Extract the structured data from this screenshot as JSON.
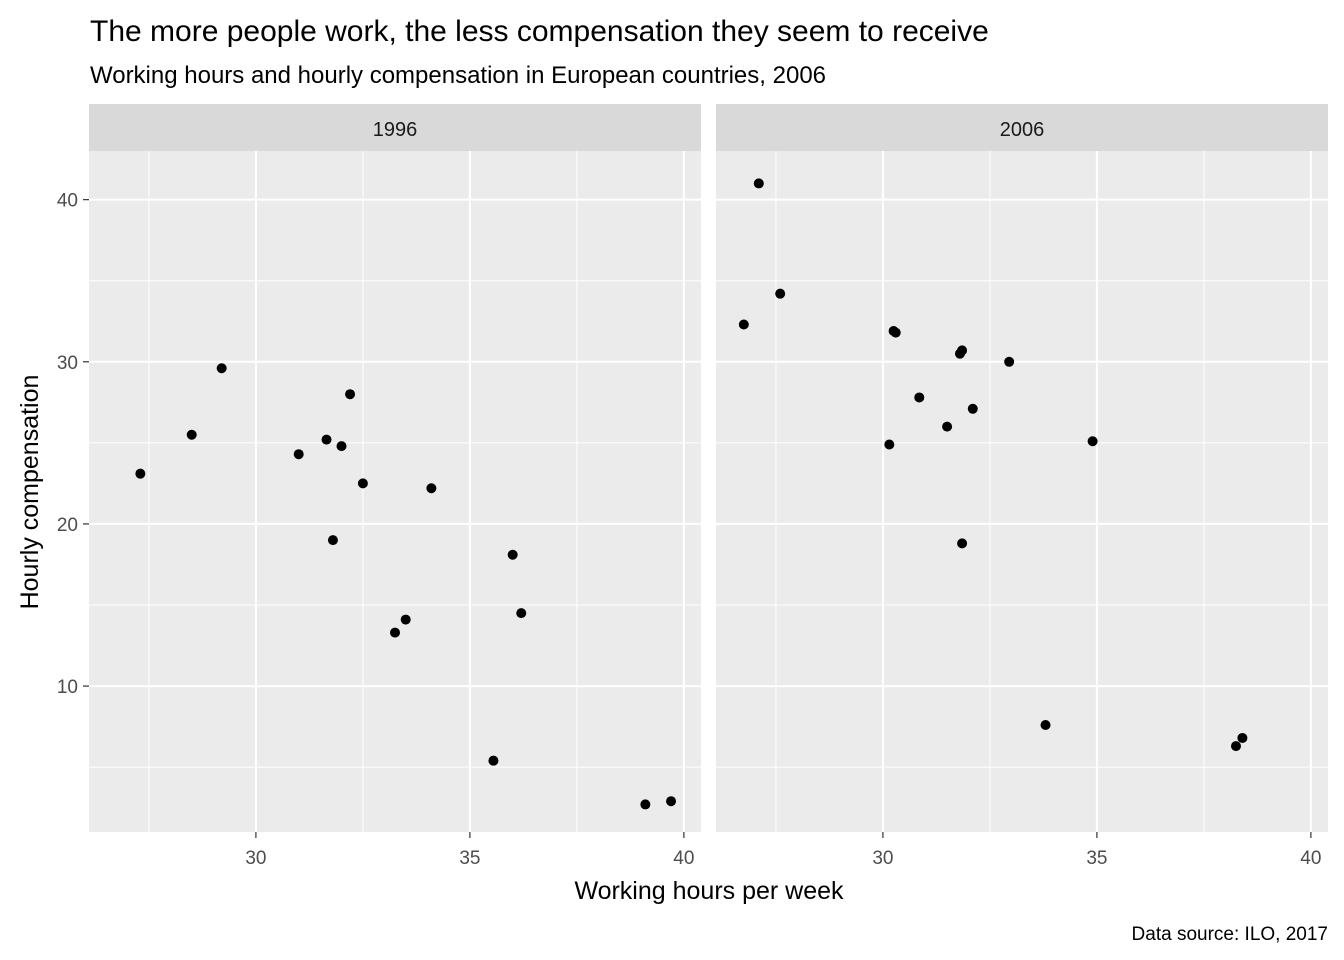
{
  "chart_data": {
    "type": "scatter",
    "title": "The more people work, the less compensation they seem to receive",
    "subtitle": "Working hours and hourly compensation in European countries, 2006",
    "xlabel": "Working hours per week",
    "ylabel": "Hourly compensation",
    "caption": "Data source: ILO, 2017",
    "xlim": [
      26.1,
      40.4
    ],
    "ylim": [
      1.0,
      43.0
    ],
    "x_ticks": [
      30,
      35,
      40
    ],
    "y_ticks": [
      10,
      20,
      30,
      40
    ],
    "grid": true,
    "point_color": "#000000",
    "panel_background": "#ebebeb",
    "strip_background": "#d9d9d9",
    "facets": [
      {
        "label": "1996",
        "points": [
          {
            "x": 27.3,
            "y": 23.1
          },
          {
            "x": 28.5,
            "y": 25.5
          },
          {
            "x": 29.2,
            "y": 29.6
          },
          {
            "x": 31.0,
            "y": 24.3
          },
          {
            "x": 31.65,
            "y": 25.2
          },
          {
            "x": 31.8,
            "y": 19.0
          },
          {
            "x": 32.0,
            "y": 24.8
          },
          {
            "x": 32.2,
            "y": 28.0
          },
          {
            "x": 32.5,
            "y": 22.5
          },
          {
            "x": 33.25,
            "y": 13.3
          },
          {
            "x": 33.5,
            "y": 14.1
          },
          {
            "x": 34.1,
            "y": 22.2
          },
          {
            "x": 35.55,
            "y": 5.4
          },
          {
            "x": 36.0,
            "y": 18.1
          },
          {
            "x": 36.2,
            "y": 14.5
          },
          {
            "x": 39.1,
            "y": 2.7
          },
          {
            "x": 39.7,
            "y": 2.9
          }
        ]
      },
      {
        "label": "2006",
        "points": [
          {
            "x": 26.75,
            "y": 32.3
          },
          {
            "x": 27.1,
            "y": 41.0
          },
          {
            "x": 27.6,
            "y": 34.2
          },
          {
            "x": 30.15,
            "y": 24.9
          },
          {
            "x": 30.25,
            "y": 31.9
          },
          {
            "x": 30.3,
            "y": 31.8
          },
          {
            "x": 30.85,
            "y": 27.8
          },
          {
            "x": 31.5,
            "y": 26.0
          },
          {
            "x": 31.8,
            "y": 30.5
          },
          {
            "x": 31.85,
            "y": 30.7
          },
          {
            "x": 31.85,
            "y": 18.8
          },
          {
            "x": 32.1,
            "y": 27.1
          },
          {
            "x": 32.95,
            "y": 30.0
          },
          {
            "x": 33.8,
            "y": 7.6
          },
          {
            "x": 34.9,
            "y": 25.1
          },
          {
            "x": 38.25,
            "y": 6.3
          },
          {
            "x": 38.4,
            "y": 6.8
          }
        ]
      }
    ]
  }
}
